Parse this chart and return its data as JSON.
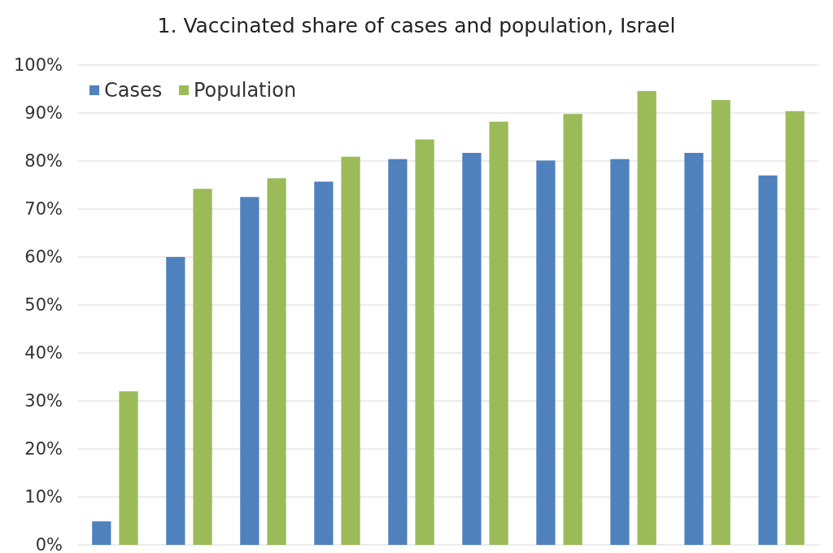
{
  "chart_data": {
    "type": "bar",
    "title": "1. Vaccinated share of cases and population, Israel",
    "categories": [
      null,
      null,
      null,
      null,
      null,
      null,
      null,
      null,
      null,
      null
    ],
    "series": [
      {
        "name": "Cases",
        "color": "#4f81bd",
        "values": [
          4.9,
          60,
          72.5,
          75.7,
          80.4,
          81.7,
          80.1,
          80.4,
          81.7,
          77.0
        ]
      },
      {
        "name": "Population",
        "color": "#9bbb59",
        "values": [
          32.0,
          74.2,
          76.4,
          80.9,
          84.5,
          88.2,
          89.8,
          94.6,
          92.7,
          90.4
        ]
      }
    ],
    "ylim": [
      0,
      100
    ],
    "yticks": [
      {
        "value": 0,
        "label": "0%"
      },
      {
        "value": 10,
        "label": "10%"
      },
      {
        "value": 20,
        "label": "20%"
      },
      {
        "value": 30,
        "label": "30%"
      },
      {
        "value": 40,
        "label": "40%"
      },
      {
        "value": 50,
        "label": "50%"
      },
      {
        "value": 60,
        "label": "60%"
      },
      {
        "value": 70,
        "label": "70%"
      },
      {
        "value": 80,
        "label": "80%"
      },
      {
        "value": 90,
        "label": "90%"
      },
      {
        "value": 100,
        "label": "100%"
      }
    ],
    "grid": "y",
    "legend": "top left"
  }
}
